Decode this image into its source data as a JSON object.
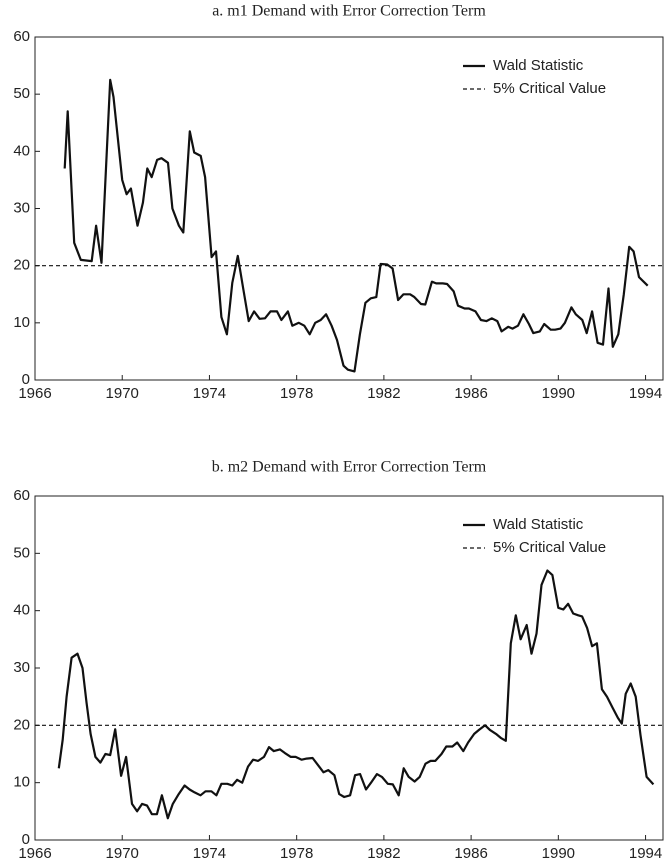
{
  "chart_data": [
    {
      "type": "line",
      "title": "a. m1 Demand with Error Correction Term",
      "x": [
        1967.36,
        1967.5,
        1967.8,
        1968.1,
        1968.6,
        1968.8,
        1969.05,
        1969.45,
        1969.6,
        1970.0,
        1970.2,
        1970.4,
        1970.7,
        1970.95,
        1971.15,
        1971.35,
        1971.6,
        1971.8,
        1972.1,
        1972.3,
        1972.6,
        1972.8,
        1973.1,
        1973.3,
        1973.6,
        1973.8,
        1974.1,
        1974.3,
        1974.55,
        1974.8,
        1975.05,
        1975.3,
        1975.55,
        1975.8,
        1976.05,
        1976.3,
        1976.55,
        1976.8,
        1977.1,
        1977.3,
        1977.6,
        1977.8,
        1978.1,
        1978.35,
        1978.6,
        1978.85,
        1979.1,
        1979.35,
        1979.6,
        1979.85,
        1980.15,
        1980.35,
        1980.65,
        1980.9,
        1981.15,
        1981.4,
        1981.65,
        1981.85,
        1982.15,
        1982.4,
        1982.65,
        1982.9,
        1983.2,
        1983.4,
        1983.7,
        1983.9,
        1984.2,
        1984.4,
        1984.7,
        1984.9,
        1985.2,
        1985.4,
        1985.7,
        1985.9,
        1986.2,
        1986.45,
        1986.7,
        1986.95,
        1987.2,
        1987.4,
        1987.7,
        1987.9,
        1988.15,
        1988.4,
        1988.65,
        1988.85,
        1989.15,
        1989.35,
        1989.65,
        1989.85,
        1990.1,
        1990.3,
        1990.6,
        1990.8,
        1991.1,
        1991.3,
        1991.55,
        1991.8,
        1992.05,
        1992.3,
        1992.5,
        1992.75,
        1993.0,
        1993.25,
        1993.45,
        1993.7,
        1994.1
      ],
      "series": [
        {
          "name": "Wald Statistic",
          "color": "#111111",
          "values": [
            37,
            47,
            24,
            21,
            20.8,
            27,
            20.5,
            52.5,
            49.5,
            35,
            32.5,
            33.5,
            27,
            31,
            37,
            35.5,
            38.5,
            38.8,
            38,
            30,
            27,
            25.8,
            43.5,
            39.8,
            39.2,
            35.5,
            21.5,
            22.5,
            11,
            8,
            17,
            21.7,
            16,
            10.3,
            12,
            10.7,
            10.8,
            12,
            12,
            10.5,
            12,
            9.5,
            10,
            9.5,
            8,
            10,
            10.5,
            11.5,
            9.5,
            7,
            2.5,
            1.8,
            1.5,
            8,
            13.5,
            14.3,
            14.5,
            20.3,
            20.2,
            19.5,
            14,
            15,
            15,
            14.5,
            13.3,
            13.2,
            17.2,
            16.9,
            16.9,
            16.8,
            15.5,
            13,
            12.5,
            12.5,
            12,
            10.5,
            10.3,
            10.8,
            10.3,
            8.5,
            9.3,
            9,
            9.5,
            11.5,
            9.8,
            8.2,
            8.5,
            9.8,
            8.8,
            8.8,
            9,
            10,
            12.7,
            11.5,
            10.5,
            8.2,
            12,
            6.5,
            6.2,
            16,
            5.8,
            8,
            15,
            23.3,
            22.5,
            18,
            16.5
          ]
        }
      ],
      "reference_line": {
        "name": "5% Critical Value",
        "value": 20,
        "style": "dashed",
        "color": "#111111"
      },
      "xlim": [
        1966,
        1994.8
      ],
      "xticks": [
        1966,
        1970,
        1974,
        1978,
        1982,
        1986,
        1990,
        1994
      ],
      "ylim": [
        0,
        60
      ],
      "yticks": [
        0,
        10,
        20,
        30,
        40,
        50,
        60
      ],
      "legend": "upper right"
    },
    {
      "type": "line",
      "title": "b. m2 Demand with Error Correction Term",
      "x": [
        1967.09,
        1967.27,
        1967.45,
        1967.68,
        1967.95,
        1968.18,
        1968.36,
        1968.55,
        1968.77,
        1969.0,
        1969.23,
        1969.45,
        1969.68,
        1969.95,
        1970.18,
        1970.45,
        1970.68,
        1970.91,
        1971.14,
        1971.36,
        1971.59,
        1971.82,
        1972.09,
        1972.32,
        1972.59,
        1972.86,
        1973.09,
        1973.32,
        1973.59,
        1973.82,
        1974.09,
        1974.32,
        1974.55,
        1974.82,
        1975.05,
        1975.27,
        1975.5,
        1975.77,
        1976.0,
        1976.23,
        1976.5,
        1976.73,
        1976.95,
        1977.23,
        1977.45,
        1977.73,
        1977.95,
        1978.23,
        1978.45,
        1978.73,
        1978.95,
        1979.23,
        1979.45,
        1979.73,
        1979.95,
        1980.18,
        1980.45,
        1980.68,
        1980.91,
        1981.18,
        1981.41,
        1981.68,
        1981.91,
        1982.18,
        1982.41,
        1982.68,
        1982.91,
        1983.14,
        1983.41,
        1983.64,
        1983.91,
        1984.14,
        1984.36,
        1984.64,
        1984.86,
        1985.14,
        1985.36,
        1985.64,
        1985.86,
        1986.14,
        1986.36,
        1986.64,
        1986.86,
        1987.14,
        1987.36,
        1987.59,
        1987.82,
        1988.05,
        1988.27,
        1988.55,
        1988.77,
        1989.0,
        1989.23,
        1989.5,
        1989.73,
        1990.0,
        1990.23,
        1990.45,
        1990.68,
        1990.91,
        1991.09,
        1991.32,
        1991.55,
        1991.77,
        1992.0,
        1992.23,
        1992.5,
        1992.73,
        1992.91,
        1993.09,
        1993.32,
        1993.55,
        1993.77,
        1994.05,
        1994.36
      ],
      "series": [
        {
          "name": "Wald Statistic",
          "color": "#111111",
          "values": [
            12.5,
            17.5,
            25,
            31.8,
            32.5,
            30,
            24,
            18.5,
            14.5,
            13.5,
            15,
            14.8,
            19.3,
            11.2,
            14.5,
            6.3,
            5,
            6.3,
            6,
            4.5,
            4.5,
            7.8,
            3.8,
            6.3,
            8,
            9.5,
            8.8,
            8.3,
            7.8,
            8.5,
            8.5,
            7.8,
            9.8,
            9.8,
            9.5,
            10.5,
            10,
            12.8,
            14,
            13.8,
            14.5,
            16.2,
            15.5,
            15.8,
            15.2,
            14.5,
            14.5,
            14,
            14.2,
            14.3,
            13.2,
            11.8,
            12.2,
            11.3,
            8,
            7.5,
            7.8,
            11.3,
            11.5,
            8.8,
            10,
            11.5,
            11,
            9.8,
            9.7,
            7.8,
            12.5,
            11,
            10.2,
            11,
            13.3,
            13.8,
            13.8,
            15,
            16.3,
            16.3,
            17,
            15.5,
            17,
            18.5,
            19.2,
            20,
            19.2,
            18.5,
            17.8,
            17.3,
            34.3,
            39.2,
            35,
            37.5,
            32.5,
            36,
            44.5,
            47,
            46.2,
            40.5,
            40.2,
            41.2,
            39.5,
            39.2,
            39,
            37,
            33.8,
            34.3,
            26.3,
            25,
            23,
            21.3,
            20.3,
            25.5,
            27.3,
            25,
            18.3,
            11,
            9.7
          ]
        }
      ],
      "reference_line": {
        "name": "5% Critical Value",
        "value": 20,
        "style": "dashed",
        "color": "#111111"
      },
      "xlim": [
        1966,
        1994.8
      ],
      "xticks": [
        1966,
        1970,
        1974,
        1978,
        1982,
        1986,
        1990,
        1994
      ],
      "ylim": [
        0,
        60
      ],
      "yticks": [
        0,
        10,
        20,
        30,
        40,
        50,
        60
      ],
      "legend": "upper right"
    }
  ]
}
